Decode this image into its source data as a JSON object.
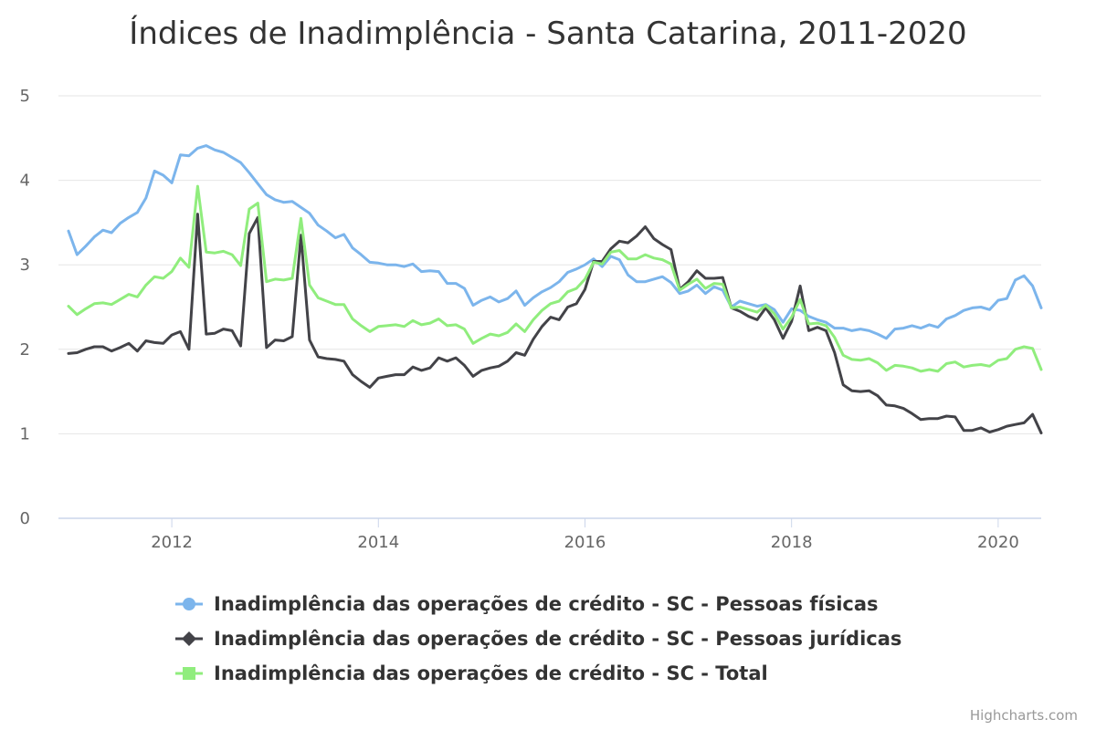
{
  "chart_data": {
    "type": "line",
    "title": "Índices de Inadimplência - Santa Catarina, 2011-2020",
    "xlabel": "",
    "ylabel": "",
    "ylim": [
      0,
      5
    ],
    "y_ticks": [
      "0",
      "1",
      "2",
      "3",
      "4",
      "5"
    ],
    "x_ticks": [
      "2012",
      "2014",
      "2016",
      "2018",
      "2020"
    ],
    "x_start": "2011-01",
    "x_end": "2020-06",
    "grid": true,
    "legend_position": "bottom",
    "credits": "Highcharts.com",
    "x": [
      "2011-01",
      "2011-02",
      "2011-03",
      "2011-04",
      "2011-05",
      "2011-06",
      "2011-07",
      "2011-08",
      "2011-09",
      "2011-10",
      "2011-11",
      "2011-12",
      "2012-01",
      "2012-02",
      "2012-03",
      "2012-04",
      "2012-05",
      "2012-06",
      "2012-07",
      "2012-08",
      "2012-09",
      "2012-10",
      "2012-11",
      "2012-12",
      "2013-01",
      "2013-02",
      "2013-03",
      "2013-04",
      "2013-05",
      "2013-06",
      "2013-07",
      "2013-08",
      "2013-09",
      "2013-10",
      "2013-11",
      "2013-12",
      "2014-01",
      "2014-02",
      "2014-03",
      "2014-04",
      "2014-05",
      "2014-06",
      "2014-07",
      "2014-08",
      "2014-09",
      "2014-10",
      "2014-11",
      "2014-12",
      "2015-01",
      "2015-02",
      "2015-03",
      "2015-04",
      "2015-05",
      "2015-06",
      "2015-07",
      "2015-08",
      "2015-09",
      "2015-10",
      "2015-11",
      "2015-12",
      "2016-01",
      "2016-02",
      "2016-03",
      "2016-04",
      "2016-05",
      "2016-06",
      "2016-07",
      "2016-08",
      "2016-09",
      "2016-10",
      "2016-11",
      "2016-12",
      "2017-01",
      "2017-02",
      "2017-03",
      "2017-04",
      "2017-05",
      "2017-06",
      "2017-07",
      "2017-08",
      "2017-09",
      "2017-10",
      "2017-11",
      "2017-12",
      "2018-01",
      "2018-02",
      "2018-03",
      "2018-04",
      "2018-05",
      "2018-06",
      "2018-07",
      "2018-08",
      "2018-09",
      "2018-10",
      "2018-11",
      "2018-12",
      "2019-01",
      "2019-02",
      "2019-03",
      "2019-04",
      "2019-05",
      "2019-06",
      "2019-07",
      "2019-08",
      "2019-09",
      "2019-10",
      "2019-11",
      "2019-12",
      "2020-01",
      "2020-02",
      "2020-03",
      "2020-04",
      "2020-05",
      "2020-06"
    ],
    "series": [
      {
        "name": "Inadimplência das operações de crédito - SC - Pessoas físicas",
        "color": "#7cb5ec",
        "marker": "circle",
        "values": [
          3.4,
          3.12,
          3.22,
          3.33,
          3.41,
          3.38,
          3.49,
          3.56,
          3.62,
          3.79,
          4.11,
          4.06,
          3.97,
          4.3,
          4.29,
          4.38,
          4.41,
          4.36,
          4.33,
          4.27,
          4.21,
          4.09,
          3.96,
          3.83,
          3.77,
          3.74,
          3.75,
          3.68,
          3.61,
          3.47,
          3.4,
          3.32,
          3.36,
          3.2,
          3.12,
          3.03,
          3.02,
          3.0,
          3.0,
          2.98,
          3.01,
          2.92,
          2.93,
          2.92,
          2.78,
          2.78,
          2.72,
          2.52,
          2.58,
          2.62,
          2.56,
          2.6,
          2.69,
          2.52,
          2.61,
          2.68,
          2.73,
          2.8,
          2.91,
          2.95,
          3.0,
          3.07,
          2.98,
          3.1,
          3.06,
          2.88,
          2.8,
          2.8,
          2.83,
          2.86,
          2.79,
          2.66,
          2.69,
          2.76,
          2.66,
          2.74,
          2.7,
          2.5,
          2.57,
          2.54,
          2.51,
          2.53,
          2.47,
          2.32,
          2.48,
          2.46,
          2.39,
          2.35,
          2.32,
          2.25,
          2.25,
          2.22,
          2.24,
          2.22,
          2.18,
          2.13,
          2.24,
          2.25,
          2.28,
          2.25,
          2.29,
          2.26,
          2.36,
          2.4,
          2.46,
          2.49,
          2.5,
          2.47,
          2.58,
          2.6,
          2.82,
          2.87,
          2.75,
          2.49
        ]
      },
      {
        "name": "Inadimplência das operações de crédito - SC - Pessoas jurídicas",
        "color": "#434348",
        "marker": "diamond",
        "values": [
          1.95,
          1.96,
          2.0,
          2.03,
          2.03,
          1.98,
          2.02,
          2.07,
          1.98,
          2.1,
          2.08,
          2.07,
          2.17,
          2.21,
          2.0,
          3.6,
          2.18,
          2.19,
          2.24,
          2.22,
          2.04,
          3.37,
          3.56,
          2.02,
          2.11,
          2.1,
          2.15,
          3.35,
          2.11,
          1.91,
          1.89,
          1.88,
          1.86,
          1.7,
          1.62,
          1.55,
          1.66,
          1.68,
          1.7,
          1.7,
          1.79,
          1.75,
          1.78,
          1.9,
          1.86,
          1.9,
          1.81,
          1.68,
          1.75,
          1.78,
          1.8,
          1.86,
          1.96,
          1.93,
          2.12,
          2.27,
          2.38,
          2.35,
          2.5,
          2.54,
          2.71,
          3.04,
          3.04,
          3.19,
          3.28,
          3.26,
          3.34,
          3.45,
          3.31,
          3.24,
          3.18,
          2.71,
          2.8,
          2.93,
          2.84,
          2.84,
          2.85,
          2.49,
          2.45,
          2.39,
          2.35,
          2.49,
          2.35,
          2.13,
          2.33,
          2.75,
          2.22,
          2.26,
          2.22,
          1.96,
          1.58,
          1.51,
          1.5,
          1.51,
          1.45,
          1.34,
          1.33,
          1.3,
          1.24,
          1.17,
          1.18,
          1.18,
          1.21,
          1.2,
          1.04,
          1.04,
          1.07,
          1.02,
          1.05,
          1.09,
          1.11,
          1.13,
          1.23,
          1.01
        ]
      },
      {
        "name": "Inadimplência das operações de crédito - SC - Total",
        "color": "#90ed7d",
        "marker": "square",
        "values": [
          2.51,
          2.41,
          2.48,
          2.54,
          2.55,
          2.53,
          2.59,
          2.65,
          2.62,
          2.76,
          2.86,
          2.84,
          2.92,
          3.08,
          2.97,
          3.93,
          3.15,
          3.14,
          3.16,
          3.12,
          2.99,
          3.66,
          3.73,
          2.8,
          2.83,
          2.82,
          2.84,
          3.55,
          2.76,
          2.61,
          2.57,
          2.53,
          2.53,
          2.36,
          2.28,
          2.21,
          2.27,
          2.28,
          2.29,
          2.27,
          2.34,
          2.29,
          2.31,
          2.36,
          2.28,
          2.29,
          2.24,
          2.07,
          2.13,
          2.18,
          2.16,
          2.2,
          2.3,
          2.21,
          2.35,
          2.46,
          2.54,
          2.57,
          2.68,
          2.72,
          2.83,
          3.03,
          3.01,
          3.15,
          3.17,
          3.07,
          3.07,
          3.12,
          3.08,
          3.06,
          3.01,
          2.7,
          2.77,
          2.83,
          2.72,
          2.78,
          2.77,
          2.49,
          2.5,
          2.47,
          2.44,
          2.52,
          2.42,
          2.24,
          2.38,
          2.59,
          2.3,
          2.31,
          2.28,
          2.14,
          1.93,
          1.88,
          1.87,
          1.89,
          1.84,
          1.75,
          1.81,
          1.8,
          1.78,
          1.74,
          1.76,
          1.74,
          1.83,
          1.85,
          1.79,
          1.81,
          1.82,
          1.8,
          1.87,
          1.89,
          2.0,
          2.03,
          2.01,
          1.76
        ]
      }
    ]
  }
}
